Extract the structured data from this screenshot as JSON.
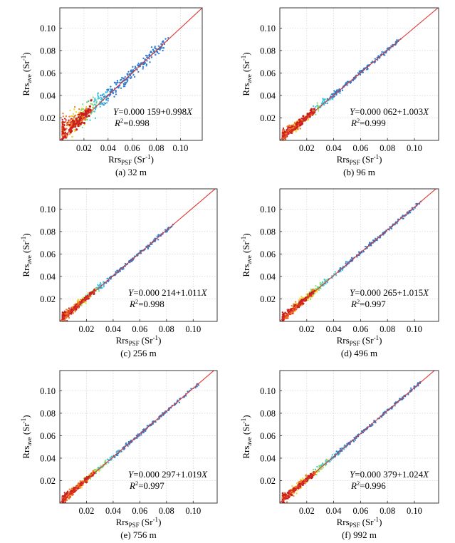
{
  "figure": {
    "ylabel_main": "Rrs",
    "ylabel_sub": "ave",
    "ylabel_unit": "(Sr",
    "xlabel_main": "Rrs",
    "xlabel_sub": "PSF",
    "xlabel_unit": "(Sr",
    "unit_exp": "-1",
    "unit_close": ")",
    "r2_prefix": "R",
    "r2_exp": "2",
    "line_color": "#e0352f"
  },
  "chart_data": [
    {
      "type": "scatter",
      "label": "(a) 32 m",
      "eq_lhs": "Y",
      "eq_rhs": "=0.000 159+0.998",
      "eq_x": "X",
      "r2_value": "=0.998",
      "fit": {
        "intercept": 0.000159,
        "slope": 0.998
      },
      "r2": 0.998,
      "xticks": [
        "0.02",
        "0.04",
        "0.06",
        "0.08",
        "0.10"
      ],
      "yticks": [
        "0.02",
        "0.04",
        "0.06",
        "0.08",
        "0.10"
      ],
      "xlim": [
        0,
        0.118
      ],
      "ylim": [
        0,
        0.118
      ],
      "grid": true,
      "max_x": 0.09,
      "spread": 0.006,
      "upper_bias": 0.006
    },
    {
      "type": "scatter",
      "label": "(b) 96 m",
      "eq_lhs": "Y",
      "eq_rhs": "=0.000 062+1.003",
      "eq_x": "X",
      "r2_value": "=0.999",
      "fit": {
        "intercept": 6.2e-05,
        "slope": 1.003
      },
      "r2": 0.999,
      "xticks": [
        "0.02",
        "0.04",
        "0.06",
        "0.08",
        "0.10"
      ],
      "yticks": [
        "0.02",
        "0.04",
        "0.06",
        "0.08",
        "0.10"
      ],
      "xlim": [
        0,
        0.118
      ],
      "ylim": [
        0,
        0.118
      ],
      "grid": true,
      "max_x": 0.09,
      "spread": 0.0025,
      "upper_bias": 0.0015
    },
    {
      "type": "scatter",
      "label": "(c) 256 m",
      "eq_lhs": "Y",
      "eq_rhs": "=0.000 214+1.011",
      "eq_x": "X",
      "r2_value": "=0.998",
      "fit": {
        "intercept": 0.000214,
        "slope": 1.011
      },
      "r2": 0.998,
      "xticks": [
        "0.02",
        "0.04",
        "0.06",
        "0.08",
        "0.10"
      ],
      "yticks": [
        "0.02",
        "0.04",
        "0.06",
        "0.08",
        "0.10"
      ],
      "xlim": [
        0,
        0.118
      ],
      "ylim": [
        0,
        0.118
      ],
      "grid": true,
      "max_x": 0.085,
      "spread": 0.002,
      "upper_bias": 0.001
    },
    {
      "type": "scatter",
      "label": "(d) 496 m",
      "eq_lhs": "Y",
      "eq_rhs": "=0.000 265+1.015",
      "eq_x": "X",
      "r2_value": "=0.997",
      "fit": {
        "intercept": 0.000265,
        "slope": 1.015
      },
      "r2": 0.997,
      "xticks": [
        "0.02",
        "0.04",
        "0.06",
        "0.08",
        "0.10"
      ],
      "yticks": [
        "0.02",
        "0.04",
        "0.06",
        "0.08",
        "0.10"
      ],
      "xlim": [
        0,
        0.118
      ],
      "ylim": [
        0,
        0.118
      ],
      "grid": true,
      "max_x": 0.105,
      "spread": 0.002,
      "upper_bias": 0.001
    },
    {
      "type": "scatter",
      "label": "(e) 756 m",
      "eq_lhs": "Y",
      "eq_rhs": "=0.000 297+1.019",
      "eq_x": "X",
      "r2_value": "=0.997",
      "fit": {
        "intercept": 0.000297,
        "slope": 1.019
      },
      "r2": 0.997,
      "xticks": [
        "0.02",
        "0.04",
        "0.06",
        "0.08",
        "0.10"
      ],
      "yticks": [
        "0.02",
        "0.04",
        "0.06",
        "0.08",
        "0.10"
      ],
      "xlim": [
        0,
        0.118
      ],
      "ylim": [
        0,
        0.118
      ],
      "grid": true,
      "max_x": 0.105,
      "spread": 0.0018,
      "upper_bias": 0.0008
    },
    {
      "type": "scatter",
      "label": "(f) 992 m",
      "eq_lhs": "Y",
      "eq_rhs": "=0.000 379+1.024",
      "eq_x": "X",
      "r2_value": "=0.996",
      "fit": {
        "intercept": 0.000379,
        "slope": 1.024
      },
      "r2": 0.996,
      "xticks": [
        "0.02",
        "0.04",
        "0.06",
        "0.08",
        "0.10"
      ],
      "yticks": [
        "0.02",
        "0.04",
        "0.06",
        "0.08",
        "0.10"
      ],
      "xlim": [
        0,
        0.118
      ],
      "ylim": [
        0,
        0.118
      ],
      "grid": true,
      "max_x": 0.105,
      "spread": 0.002,
      "upper_bias": 0.001
    }
  ]
}
